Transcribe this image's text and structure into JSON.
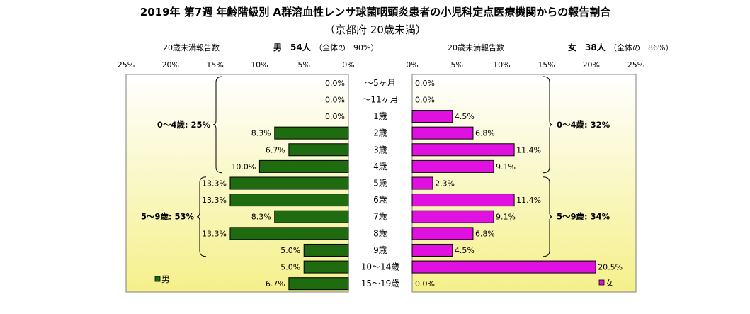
{
  "chart_data": {
    "type": "bar",
    "title": "2019年 第7週 年齢階級別 A群溶血性レンサ球菌咽頭炎患者の小児科定点医療機関からの報告割合",
    "subtitle": "（京都府 20歳未満）",
    "categories": [
      "～5ヶ月",
      "～11ヶ月",
      "1歳",
      "2歳",
      "3歳",
      "4歳",
      "5歳",
      "6歳",
      "7歳",
      "8歳",
      "9歳",
      "10～14歳",
      "15～19歳"
    ],
    "xlim": [
      0,
      25
    ],
    "ticks": [
      0,
      5,
      10,
      15,
      20,
      25
    ],
    "tick_labels": [
      "0%",
      "5%",
      "10%",
      "15%",
      "20%",
      "25%"
    ],
    "series": [
      {
        "name": "男",
        "side": "left",
        "color": "#1e6b10",
        "values": [
          0.0,
          0.0,
          0.0,
          8.3,
          6.7,
          10.0,
          13.3,
          13.3,
          8.3,
          13.3,
          5.0,
          5.0,
          6.7
        ],
        "value_labels": [
          "0.0%",
          "0.0%",
          "0.0%",
          "8.3%",
          "6.7%",
          "10.0%",
          "13.3%",
          "13.3%",
          "8.3%",
          "13.3%",
          "5.0%",
          "5.0%",
          "6.7%"
        ],
        "header_left": "20歳未満報告数",
        "header_mid": "男　54人",
        "header_right": "（全体の　90%）",
        "groups": [
          {
            "label": "0～4歳: 25%",
            "from": 0,
            "to": 5
          },
          {
            "label": "5～9歳: 53%",
            "from": 6,
            "to": 10
          }
        ]
      },
      {
        "name": "女",
        "side": "right",
        "color": "#e010e0",
        "values": [
          0.0,
          0.0,
          4.5,
          6.8,
          11.4,
          9.1,
          2.3,
          11.4,
          9.1,
          6.8,
          4.5,
          20.5,
          0.0
        ],
        "value_labels": [
          "0.0%",
          "0.0%",
          "4.5%",
          "6.8%",
          "11.4%",
          "9.1%",
          "2.3%",
          "11.4%",
          "9.1%",
          "6.8%",
          "4.5%",
          "20.5%",
          "0.0%"
        ],
        "header_left": "20歳未満報告数",
        "header_mid": "女　38人",
        "header_right": "（全体の　86%）",
        "groups": [
          {
            "label": "0～4歳: 32%",
            "from": 0,
            "to": 5
          },
          {
            "label": "5～9歳: 34%",
            "from": 6,
            "to": 10
          }
        ]
      }
    ],
    "legend": [
      {
        "label": "男",
        "placement": "bottom-left"
      },
      {
        "label": "女",
        "placement": "bottom-right"
      }
    ],
    "colors": {
      "male": "#1e6b10",
      "female": "#e010e0",
      "panel_top": "#ffffff",
      "panel_bottom": "#f5f08a"
    }
  }
}
